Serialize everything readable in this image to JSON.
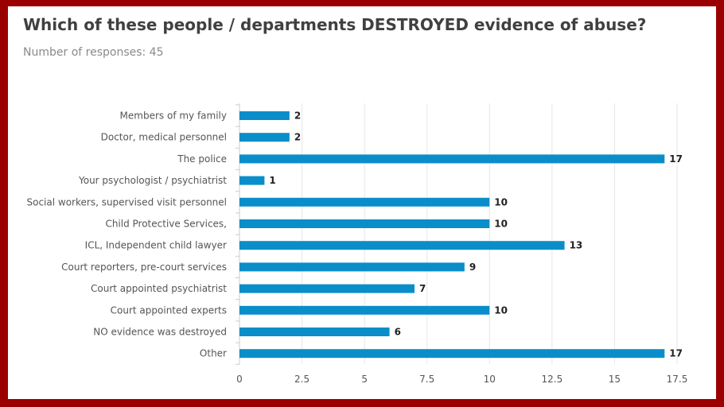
{
  "chart_data": {
    "type": "bar",
    "orientation": "horizontal",
    "title": "Which of these people / departments DESTROYED evidence of abuse?",
    "subtitle": "Number of responses: 45",
    "categories": [
      "Members of my family",
      "Doctor, medical personnel",
      "The police",
      "Your psychologist / psychiatrist",
      "Social workers, supervised visit personnel",
      "Child Protective Services,",
      "ICL, Independent child lawyer",
      "Court reporters, pre-court services",
      "Court appointed psychiatrist",
      "Court appointed experts",
      "NO evidence was destroyed",
      "Other"
    ],
    "values": [
      2,
      2,
      17,
      1,
      10,
      10,
      13,
      9,
      7,
      10,
      6,
      17
    ],
    "xlim": [
      0,
      17.5
    ],
    "xticks": [
      "0",
      "2.5",
      "5",
      "7.5",
      "10",
      "12.5",
      "15",
      "17.5"
    ],
    "grid": true,
    "bar_color": "#0a8ec9"
  }
}
